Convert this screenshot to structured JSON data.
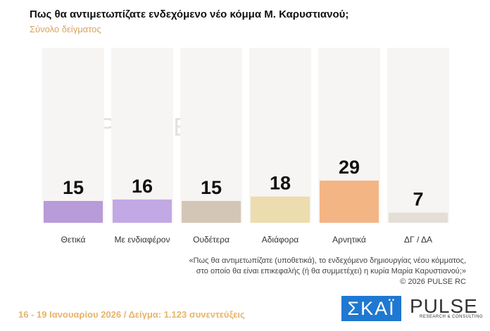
{
  "header": {
    "title": "Πως θα αντιμετωπίζατε ενδεχόμενο νέο κόμμα Μ. Καρυστιανού;",
    "subtitle": "Σύνολο δείγματος"
  },
  "chart_data": {
    "type": "bar",
    "title": "Πως θα αντιμετωπίζατε ενδεχόμενο νέο κόμμα Μ. Καρυστιανού;",
    "subtitle": "Σύνολο δείγματος",
    "categories": [
      "Θετικά",
      "Με ενδιαφέρον",
      "Ουδέτερα",
      "Αδιάφορα",
      "Αρνητικά",
      "ΔΓ / ΔΑ"
    ],
    "values": [
      15,
      16,
      15,
      18,
      29,
      7
    ],
    "colors": [
      "#b89bd9",
      "#c2a8e4",
      "#d4c6b6",
      "#eddcae",
      "#f4b585",
      "#e4ded6"
    ],
    "ylim": [
      0,
      100
    ],
    "grid": false
  },
  "note": {
    "line1": "«Πως θα αντιμετωπίζατε (υποθετικά), το ενδεχόμενο δημιουργίας νέου κόμματος,",
    "line2": "στο οποίο θα είναι επικεφαλής (ή θα συμμετέχει) η κυρία Μαρία Καρυστιανού;»",
    "copyright": "©  2026  PULSE RC"
  },
  "footer": "16 - 19 Ιανουαρίου 2026  /  Δείγμα:  1.123 συνεντεύξεις",
  "logos": {
    "skai": "ΣΚΑΪ",
    "pulse": "PULSE",
    "pulse_tag": "RESEARCH & CONSULTING",
    "watermark": "PULSE"
  }
}
